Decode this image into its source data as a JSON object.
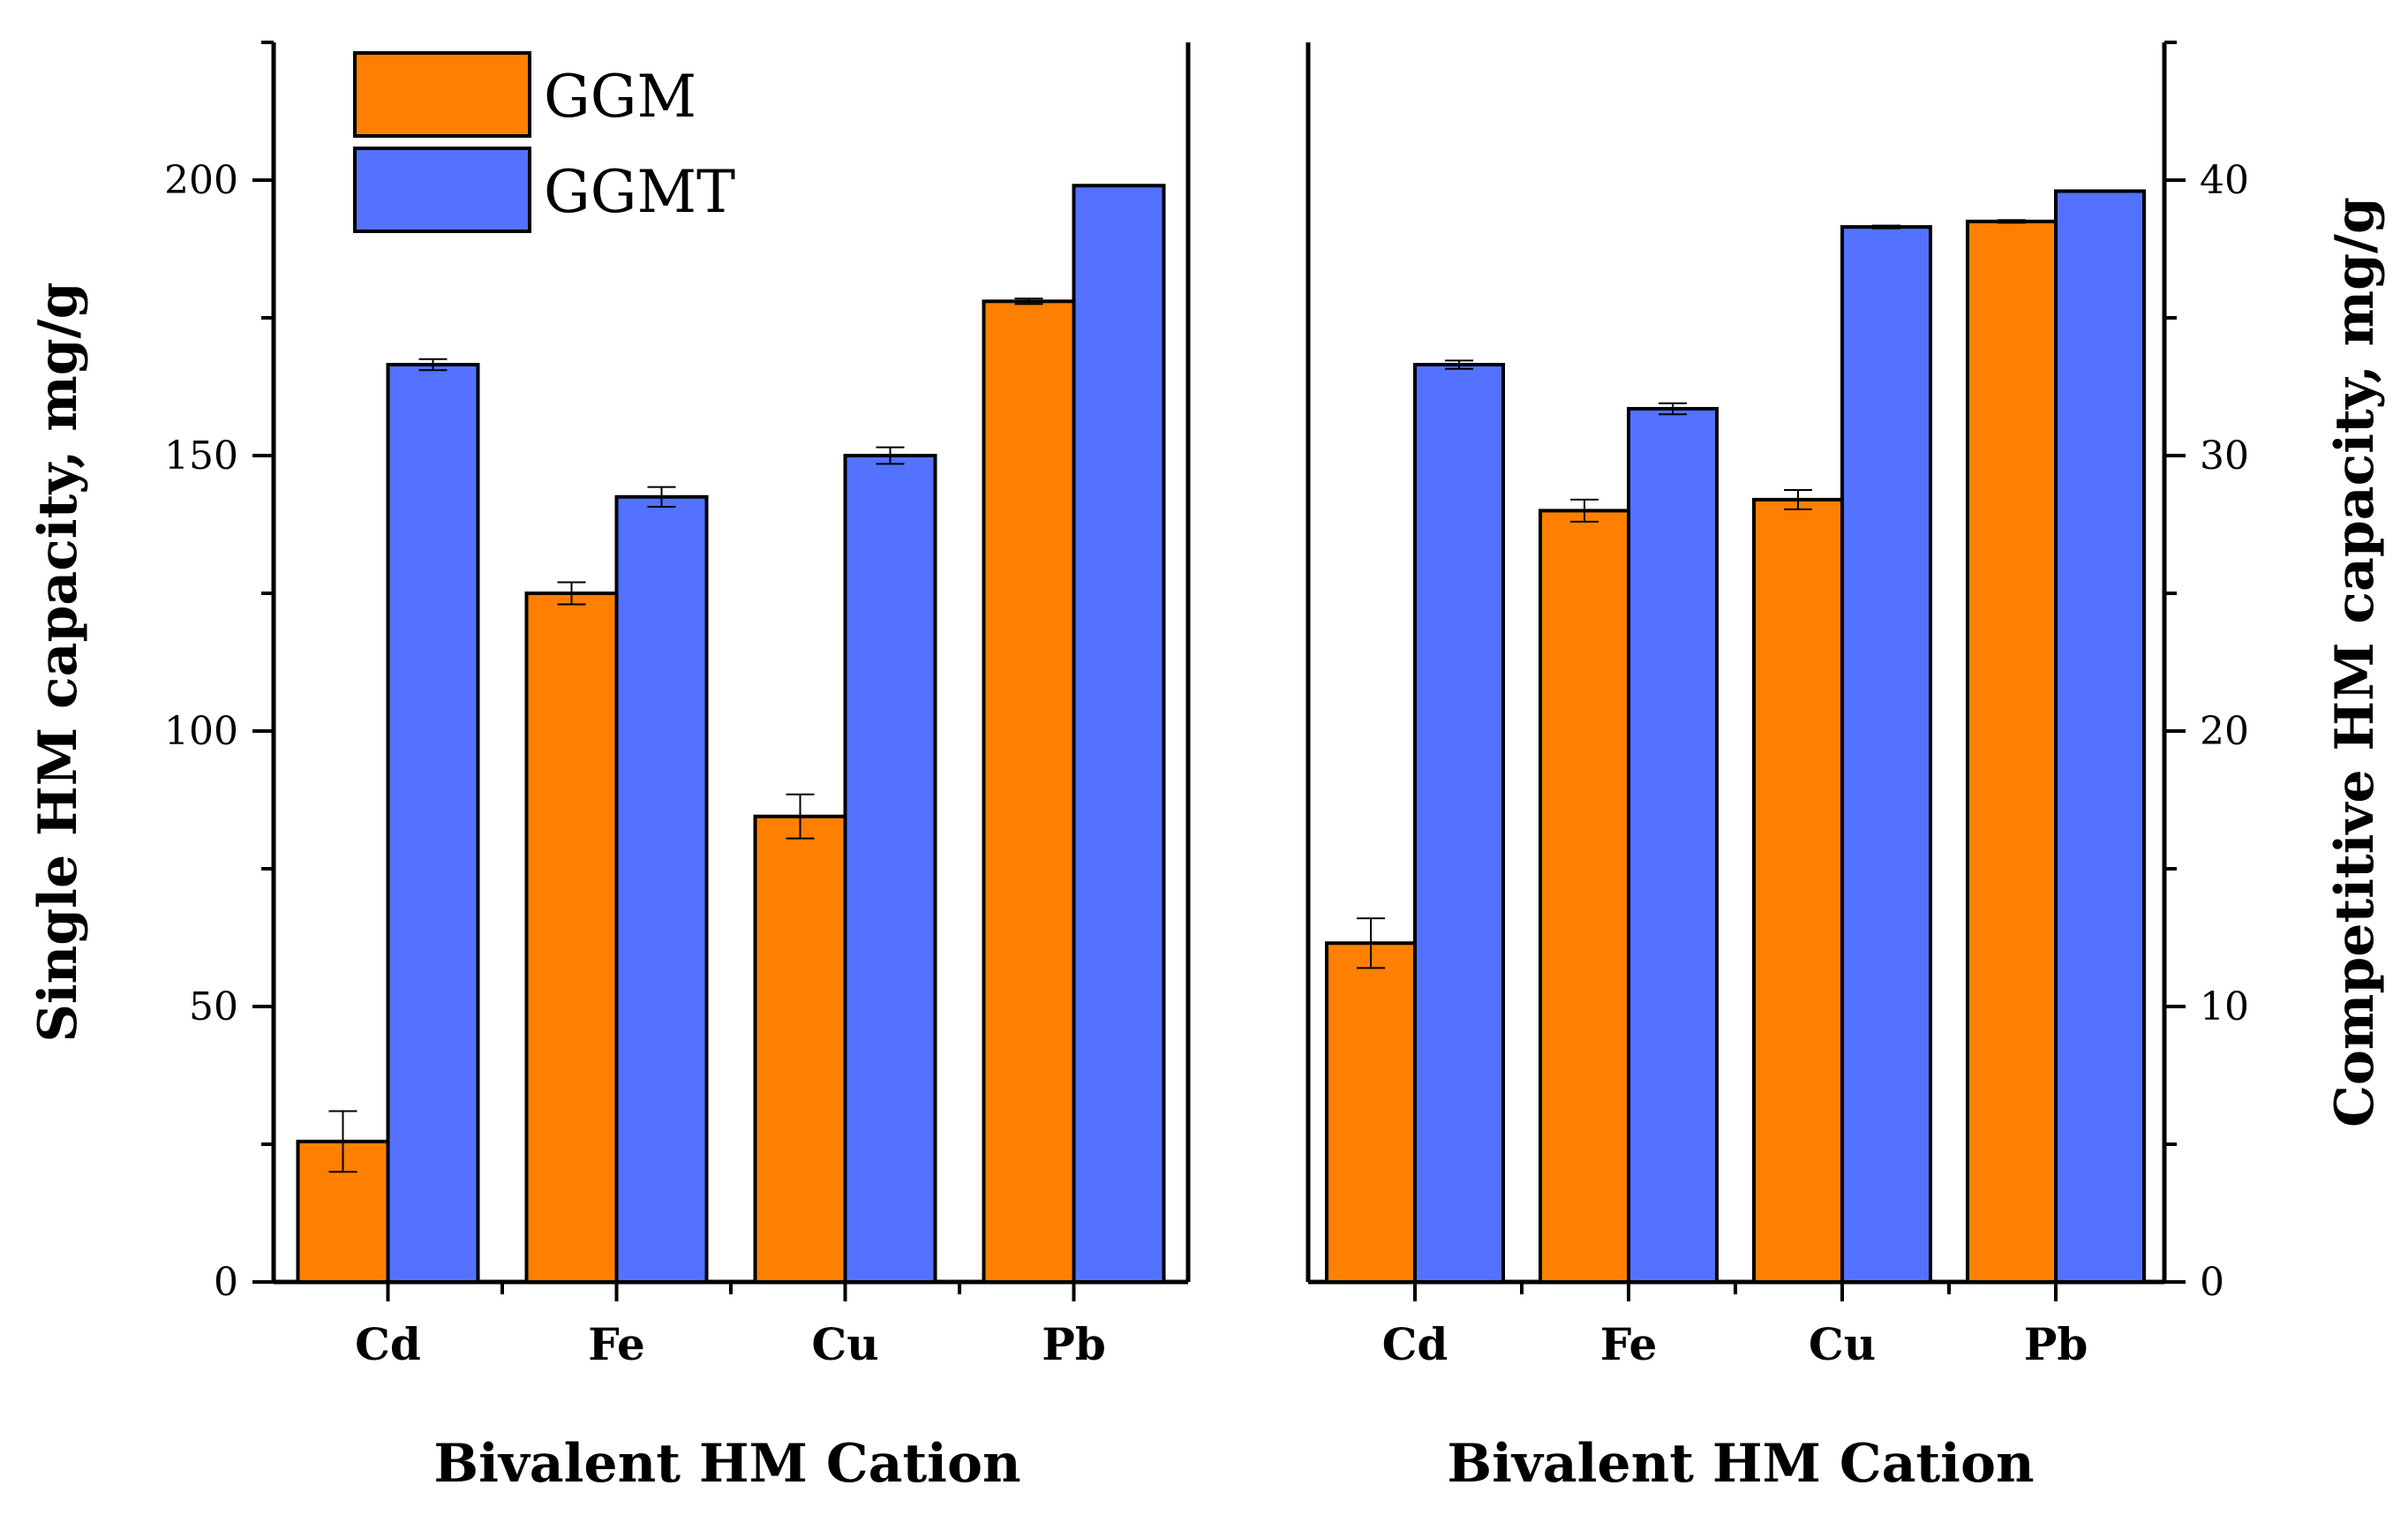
{
  "colors": {
    "GGM": "#ff8000",
    "GGMT": "#5272ff",
    "axis": "#000000"
  },
  "legend": [
    {
      "key": "GGM",
      "label": "GGM"
    },
    {
      "key": "GGMT",
      "label": "GGMT"
    }
  ],
  "chart_data": [
    {
      "type": "bar",
      "panel": "left",
      "categories": [
        "Cd",
        "Fe",
        "Cu",
        "Pb"
      ],
      "series": [
        {
          "name": "GGM",
          "values": [
            25.5,
            125,
            84.5,
            178
          ],
          "errors": [
            5.5,
            2,
            4,
            0.5
          ]
        },
        {
          "name": "GGMT",
          "values": [
            166.5,
            142.5,
            150,
            199
          ],
          "errors": [
            1,
            1.8,
            1.5,
            0
          ]
        }
      ],
      "xlabel": "Bivalent HM Cation",
      "ylabel": "Single HM capacity, mg/g",
      "ylim": [
        0,
        200
      ],
      "yticks": [
        0,
        50,
        100,
        150,
        200
      ],
      "legend_position": "top-left",
      "grid": false
    },
    {
      "type": "bar",
      "panel": "right",
      "categories": [
        "Cd",
        "Fe",
        "Cu",
        "Pb"
      ],
      "series": [
        {
          "name": "GGM",
          "values": [
            12.3,
            28,
            28.4,
            38.5
          ],
          "errors": [
            0.9,
            0.4,
            0.35,
            0.05
          ]
        },
        {
          "name": "GGMT",
          "values": [
            33.3,
            31.7,
            38.3,
            39.6
          ],
          "errors": [
            0.15,
            0.2,
            0.05,
            0
          ]
        }
      ],
      "xlabel": "Bivalent HM Cation",
      "ylabel": "Competitive HM capacity, mg/g",
      "ylim": [
        0,
        40
      ],
      "yticks": [
        0,
        10,
        20,
        30,
        40
      ],
      "y_axis_side": "right",
      "grid": false
    }
  ]
}
